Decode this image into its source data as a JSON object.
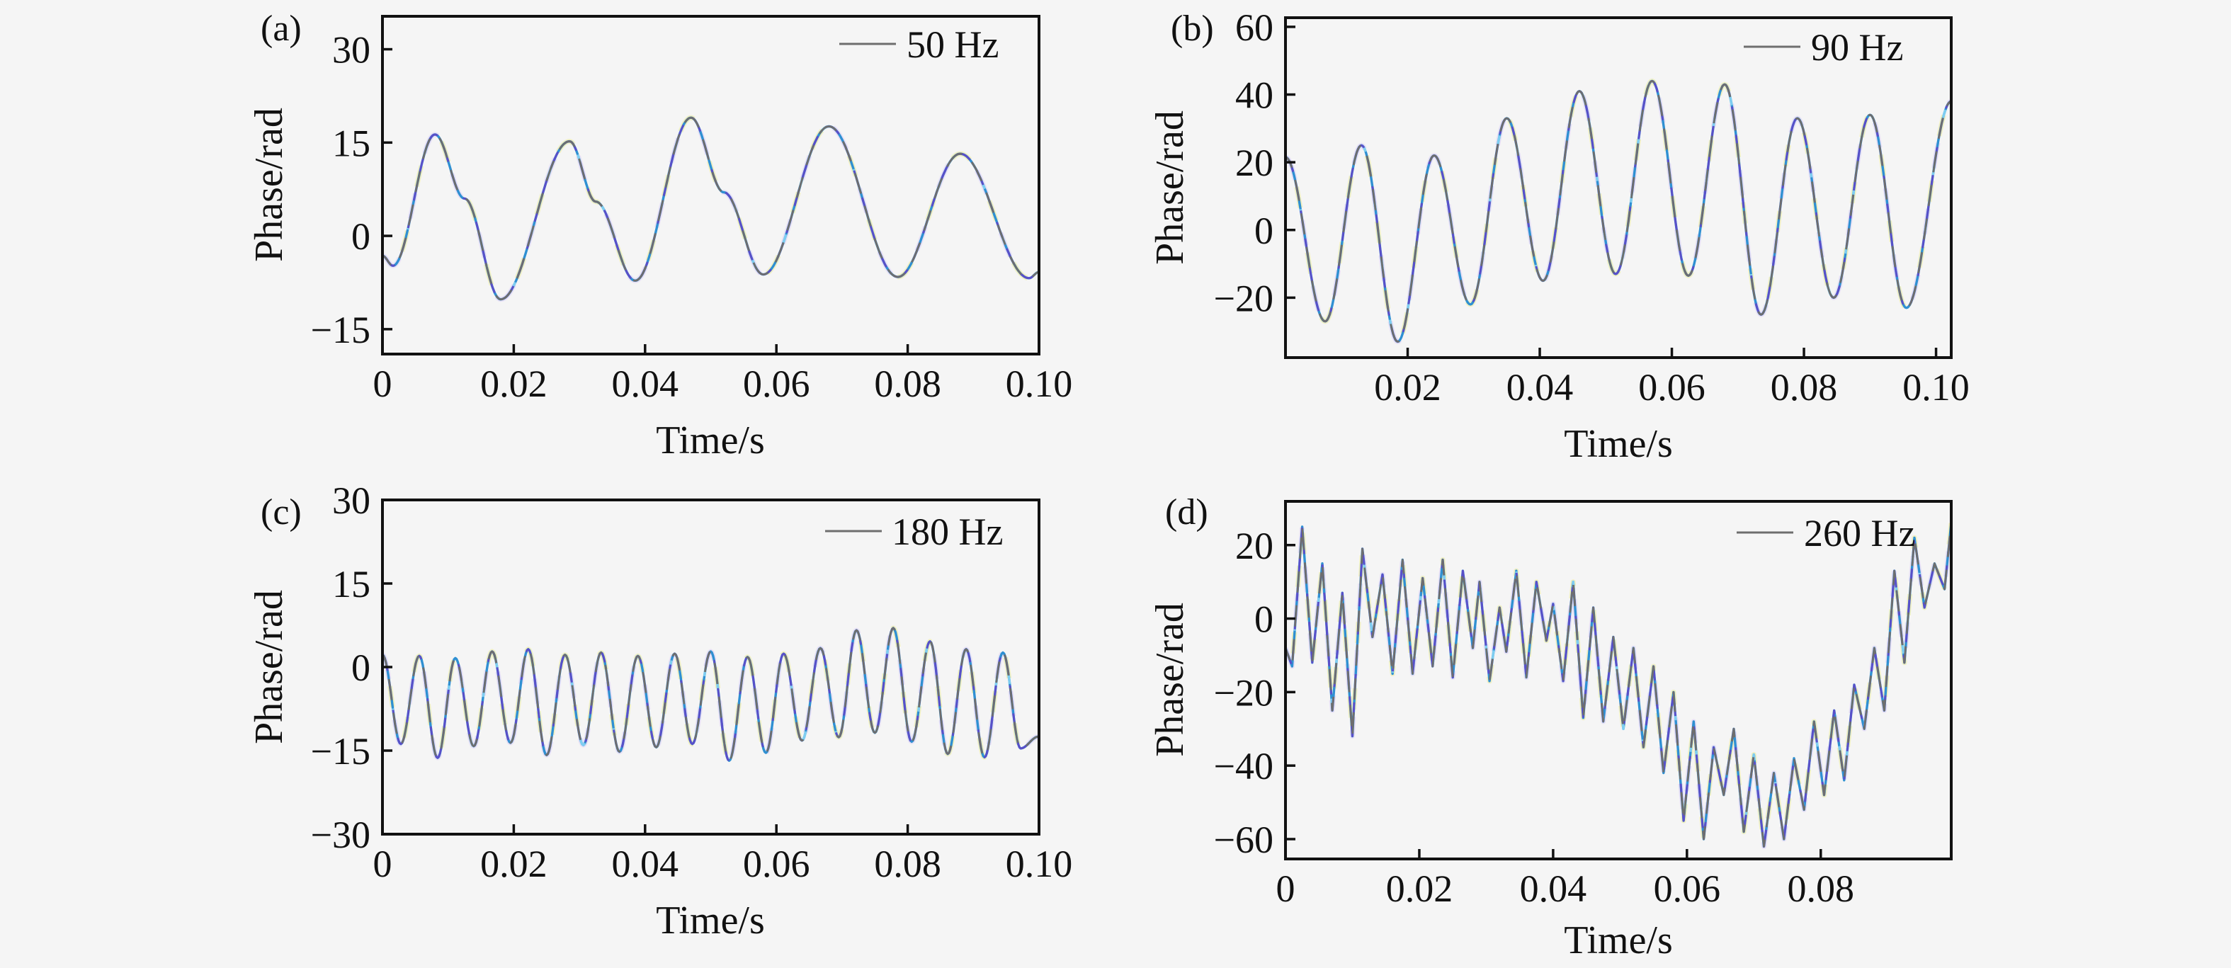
{
  "figure": {
    "background": "#f5f5f5",
    "axis_color": "#111111",
    "line_colors": {
      "gray": "#6e6e6e",
      "purple": "#5a4fc8",
      "blue": "#2f90d2",
      "cyan": "#7ecdf0",
      "halo_yellow": "#f0efc2",
      "halo_lavender": "#e7e0f5"
    }
  },
  "chart_data": [
    {
      "type": "line",
      "panel_label": "(a)",
      "legend": "50 Hz",
      "legend_position": "top-right",
      "grid": false,
      "xlabel": "Time/s",
      "ylabel": "Phase/rad",
      "x_range": [
        0,
        0.1
      ],
      "y_range": [
        -19,
        35.3
      ],
      "interp": "cosine",
      "x_ticks": [
        {
          "v": 0,
          "label": "0"
        },
        {
          "v": 0.02,
          "label": "0.02"
        },
        {
          "v": 0.04,
          "label": "0.04"
        },
        {
          "v": 0.06,
          "label": "0.06"
        },
        {
          "v": 0.08,
          "label": "0.08"
        },
        {
          "v": 0.1,
          "label": "0.10"
        }
      ],
      "y_ticks": [
        {
          "v": 30,
          "label": "30"
        },
        {
          "v": 15,
          "label": "15"
        },
        {
          "v": 0,
          "label": "0"
        },
        {
          "v": -15,
          "label": "−15"
        }
      ],
      "points": [
        [
          0,
          -3.2
        ],
        [
          0.0016,
          -4.8
        ],
        [
          0.008,
          16.3
        ],
        [
          0.0125,
          6.0
        ],
        [
          0.018,
          -10.2
        ],
        [
          0.0285,
          15.2
        ],
        [
          0.0325,
          5.5
        ],
        [
          0.0385,
          -7.2
        ],
        [
          0.047,
          19.0
        ],
        [
          0.052,
          7.0
        ],
        [
          0.058,
          -6.2
        ],
        [
          0.068,
          17.6
        ],
        [
          0.0785,
          -6.6
        ],
        [
          0.088,
          13.2
        ],
        [
          0.0985,
          -6.8
        ],
        [
          0.1,
          -5.8
        ]
      ]
    },
    {
      "type": "line",
      "panel_label": "(b)",
      "legend": "90 Hz",
      "legend_position": "top-right",
      "grid": false,
      "xlabel": "Time/s",
      "ylabel": "Phase/rad",
      "x_range": [
        0.0015,
        0.1023
      ],
      "y_range": [
        -37.7,
        62.7
      ],
      "interp": "cosine",
      "x_ticks": [
        {
          "v": 0.02,
          "label": "0.02"
        },
        {
          "v": 0.04,
          "label": "0.04"
        },
        {
          "v": 0.06,
          "label": "0.06"
        },
        {
          "v": 0.08,
          "label": "0.08"
        },
        {
          "v": 0.1,
          "label": "0.10"
        }
      ],
      "y_ticks": [
        {
          "v": 60,
          "label": "60"
        },
        {
          "v": 40,
          "label": "40"
        },
        {
          "v": 20,
          "label": "20"
        },
        {
          "v": 0,
          "label": "0"
        },
        {
          "v": -20,
          "label": "−20"
        }
      ],
      "points": [
        [
          0.0015,
          21.5
        ],
        [
          0.0075,
          -27
        ],
        [
          0.013,
          25
        ],
        [
          0.0185,
          -33
        ],
        [
          0.024,
          22
        ],
        [
          0.0295,
          -22
        ],
        [
          0.035,
          33
        ],
        [
          0.0405,
          -15
        ],
        [
          0.046,
          41
        ],
        [
          0.0515,
          -13
        ],
        [
          0.057,
          44
        ],
        [
          0.0625,
          -13.5
        ],
        [
          0.068,
          43
        ],
        [
          0.0735,
          -25
        ],
        [
          0.079,
          33
        ],
        [
          0.0845,
          -20
        ],
        [
          0.09,
          34
        ],
        [
          0.0955,
          -23
        ],
        [
          0.1023,
          38
        ]
      ]
    },
    {
      "type": "line",
      "panel_label": "(c)",
      "legend": "180 Hz",
      "legend_position": "top-right",
      "grid": false,
      "xlabel": "Time/s",
      "ylabel": "Phase/rad",
      "x_range": [
        0,
        0.1
      ],
      "y_range": [
        -30,
        30
      ],
      "interp": "cosine",
      "x_ticks": [
        {
          "v": 0,
          "label": "0"
        },
        {
          "v": 0.02,
          "label": "0.02"
        },
        {
          "v": 0.04,
          "label": "0.04"
        },
        {
          "v": 0.06,
          "label": "0.06"
        },
        {
          "v": 0.08,
          "label": "0.08"
        },
        {
          "v": 0.1,
          "label": "0.10"
        }
      ],
      "y_ticks": [
        {
          "v": 30,
          "label": "30"
        },
        {
          "v": 15,
          "label": "15"
        },
        {
          "v": 0,
          "label": "0"
        },
        {
          "v": -15,
          "label": "−15"
        },
        {
          "v": -30,
          "label": "−30"
        }
      ],
      "points": [
        [
          0,
          2.2
        ],
        [
          0.0028,
          -13.8
        ],
        [
          0.0056,
          2.0
        ],
        [
          0.0084,
          -16.3
        ],
        [
          0.0111,
          1.6
        ],
        [
          0.0139,
          -14.2
        ],
        [
          0.0167,
          2.8
        ],
        [
          0.0195,
          -13.6
        ],
        [
          0.0222,
          3.2
        ],
        [
          0.025,
          -15.8
        ],
        [
          0.0278,
          2.2
        ],
        [
          0.0306,
          -14.0
        ],
        [
          0.0333,
          2.6
        ],
        [
          0.0361,
          -15.2
        ],
        [
          0.0389,
          2.0
        ],
        [
          0.0417,
          -14.4
        ],
        [
          0.0445,
          2.4
        ],
        [
          0.0472,
          -13.8
        ],
        [
          0.05,
          2.8
        ],
        [
          0.0528,
          -16.8
        ],
        [
          0.0556,
          1.8
        ],
        [
          0.0584,
          -15.4
        ],
        [
          0.0611,
          2.4
        ],
        [
          0.0639,
          -13.2
        ],
        [
          0.0667,
          3.4
        ],
        [
          0.0695,
          -12.6
        ],
        [
          0.0722,
          6.6
        ],
        [
          0.075,
          -11.8
        ],
        [
          0.0778,
          7.0
        ],
        [
          0.0806,
          -13.4
        ],
        [
          0.0834,
          4.6
        ],
        [
          0.0861,
          -15.6
        ],
        [
          0.0889,
          3.2
        ],
        [
          0.0917,
          -16.2
        ],
        [
          0.0945,
          2.6
        ],
        [
          0.0972,
          -14.6
        ],
        [
          0.0999,
          -12.5
        ]
      ]
    },
    {
      "type": "line",
      "panel_label": "(d)",
      "legend": "260 Hz",
      "legend_position": "top-right",
      "grid": false,
      "xlabel": "Time/s",
      "ylabel": "Phase/rad",
      "x_range": [
        0,
        0.0995
      ],
      "y_range": [
        -65.4,
        31.9
      ],
      "interp": "linear",
      "x_ticks": [
        {
          "v": 0,
          "label": "0"
        },
        {
          "v": 0.02,
          "label": "0.02"
        },
        {
          "v": 0.04,
          "label": "0.04"
        },
        {
          "v": 0.06,
          "label": "0.06"
        },
        {
          "v": 0.08,
          "label": "0.08"
        }
      ],
      "y_ticks": [
        {
          "v": 20,
          "label": "20"
        },
        {
          "v": 0,
          "label": "0"
        },
        {
          "v": -20,
          "label": "−20"
        },
        {
          "v": -40,
          "label": "−40"
        },
        {
          "v": -60,
          "label": "−60"
        }
      ],
      "points": [
        [
          0,
          -8
        ],
        [
          0.001,
          -13
        ],
        [
          0.0025,
          25
        ],
        [
          0.004,
          -12
        ],
        [
          0.0055,
          15
        ],
        [
          0.007,
          -25
        ],
        [
          0.0085,
          7
        ],
        [
          0.01,
          -32
        ],
        [
          0.0115,
          19
        ],
        [
          0.013,
          -5
        ],
        [
          0.0145,
          12
        ],
        [
          0.016,
          -15
        ],
        [
          0.0175,
          16
        ],
        [
          0.019,
          -15
        ],
        [
          0.0205,
          11
        ],
        [
          0.022,
          -13
        ],
        [
          0.0235,
          16
        ],
        [
          0.025,
          -16
        ],
        [
          0.0265,
          13
        ],
        [
          0.028,
          -8
        ],
        [
          0.029,
          10
        ],
        [
          0.0305,
          -17
        ],
        [
          0.032,
          3
        ],
        [
          0.033,
          -9
        ],
        [
          0.0345,
          13
        ],
        [
          0.036,
          -16
        ],
        [
          0.0375,
          10
        ],
        [
          0.039,
          -6
        ],
        [
          0.04,
          4
        ],
        [
          0.0415,
          -17
        ],
        [
          0.043,
          10
        ],
        [
          0.0445,
          -27
        ],
        [
          0.046,
          3
        ],
        [
          0.0475,
          -28
        ],
        [
          0.049,
          -5
        ],
        [
          0.0505,
          -30
        ],
        [
          0.052,
          -8
        ],
        [
          0.0535,
          -35
        ],
        [
          0.055,
          -13
        ],
        [
          0.0565,
          -42
        ],
        [
          0.058,
          -20
        ],
        [
          0.0595,
          -55
        ],
        [
          0.061,
          -28
        ],
        [
          0.0625,
          -60
        ],
        [
          0.064,
          -35
        ],
        [
          0.0655,
          -48
        ],
        [
          0.067,
          -30
        ],
        [
          0.0685,
          -58
        ],
        [
          0.07,
          -37
        ],
        [
          0.0715,
          -62
        ],
        [
          0.073,
          -42
        ],
        [
          0.0745,
          -60
        ],
        [
          0.076,
          -38
        ],
        [
          0.0775,
          -52
        ],
        [
          0.079,
          -28
        ],
        [
          0.0805,
          -48
        ],
        [
          0.082,
          -25
        ],
        [
          0.0835,
          -44
        ],
        [
          0.085,
          -18
        ],
        [
          0.0865,
          -30
        ],
        [
          0.088,
          -8
        ],
        [
          0.0895,
          -25
        ],
        [
          0.091,
          13
        ],
        [
          0.0925,
          -12
        ],
        [
          0.094,
          22
        ],
        [
          0.0955,
          3
        ],
        [
          0.097,
          15
        ],
        [
          0.0985,
          8
        ],
        [
          0.0995,
          26
        ]
      ]
    }
  ]
}
